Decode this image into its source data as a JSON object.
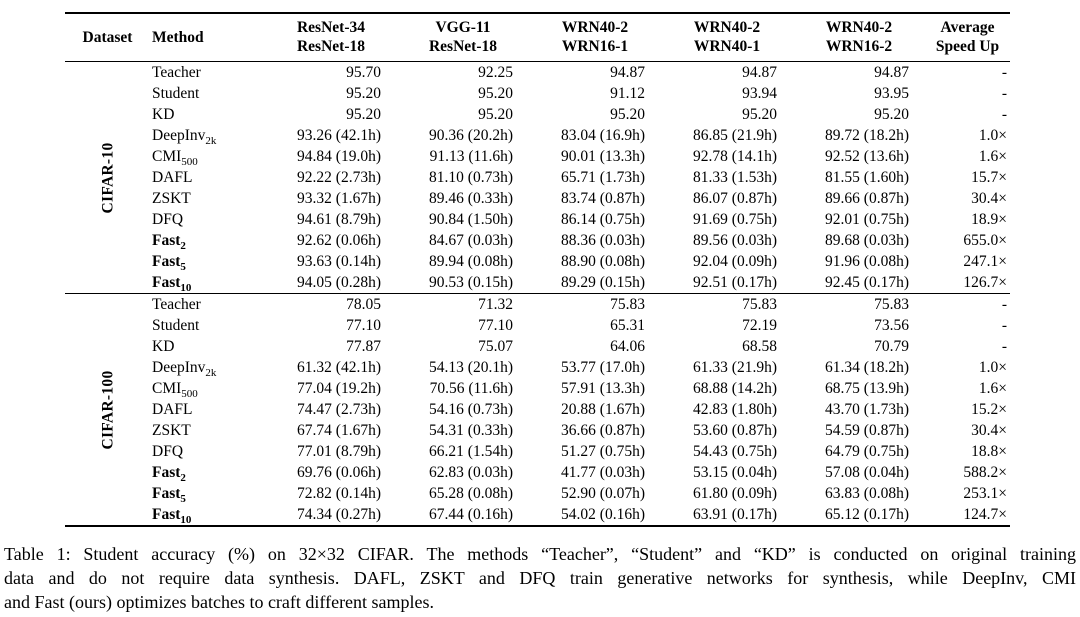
{
  "table": {
    "header": {
      "dataset": "Dataset",
      "method": "Method",
      "model_pairs": [
        {
          "top": "ResNet-34",
          "bottom": "ResNet-18"
        },
        {
          "top": "VGG-11",
          "bottom": "ResNet-18"
        },
        {
          "top": "WRN40-2",
          "bottom": "WRN16-1"
        },
        {
          "top": "WRN40-2",
          "bottom": "WRN40-1"
        },
        {
          "top": "WRN40-2",
          "bottom": "WRN16-2"
        },
        {
          "top": "Average",
          "bottom": "Speed Up"
        }
      ]
    },
    "sections": [
      {
        "dataset": "CIFAR-10",
        "rows": [
          {
            "method": "Teacher",
            "sub": "",
            "bold": false,
            "values": [
              "95.70",
              "92.25",
              "94.87",
              "94.87",
              "94.87",
              "-"
            ]
          },
          {
            "method": "Student",
            "sub": "",
            "bold": false,
            "values": [
              "95.20",
              "95.20",
              "91.12",
              "93.94",
              "93.95",
              "-"
            ]
          },
          {
            "method": "KD",
            "sub": "",
            "bold": false,
            "values": [
              "95.20",
              "95.20",
              "95.20",
              "95.20",
              "95.20",
              "-"
            ]
          },
          {
            "method": "DeepInv",
            "sub": "2k",
            "bold": false,
            "values": [
              "93.26 (42.1h)",
              "90.36 (20.2h)",
              "83.04 (16.9h)",
              "86.85 (21.9h)",
              "89.72 (18.2h)",
              "1.0×"
            ]
          },
          {
            "method": "CMI",
            "sub": "500",
            "bold": false,
            "values": [
              "94.84 (19.0h)",
              "91.13 (11.6h)",
              "90.01 (13.3h)",
              "92.78 (14.1h)",
              "92.52 (13.6h)",
              "1.6×"
            ]
          },
          {
            "method": "DAFL",
            "sub": "",
            "bold": false,
            "values": [
              "92.22 (2.73h)",
              "81.10 (0.73h)",
              "65.71 (1.73h)",
              "81.33 (1.53h)",
              "81.55 (1.60h)",
              "15.7×"
            ]
          },
          {
            "method": "ZSKT",
            "sub": "",
            "bold": false,
            "values": [
              "93.32 (1.67h)",
              "89.46 (0.33h)",
              "83.74 (0.87h)",
              "86.07 (0.87h)",
              "89.66 (0.87h)",
              "30.4×"
            ]
          },
          {
            "method": "DFQ",
            "sub": "",
            "bold": false,
            "values": [
              "94.61 (8.79h)",
              "90.84 (1.50h)",
              "86.14 (0.75h)",
              "91.69 (0.75h)",
              "92.01 (0.75h)",
              "18.9×"
            ]
          },
          {
            "method": "Fast",
            "sub": "2",
            "bold": true,
            "values": [
              "92.62 (0.06h)",
              "84.67 (0.03h)",
              "88.36 (0.03h)",
              "89.56 (0.03h)",
              "89.68 (0.03h)",
              "655.0×"
            ]
          },
          {
            "method": "Fast",
            "sub": "5",
            "bold": true,
            "values": [
              "93.63 (0.14h)",
              "89.94 (0.08h)",
              "88.90 (0.08h)",
              "92.04 (0.09h)",
              "91.96 (0.08h)",
              "247.1×"
            ]
          },
          {
            "method": "Fast",
            "sub": "10",
            "bold": true,
            "values": [
              "94.05 (0.28h)",
              "90.53 (0.15h)",
              "89.29 (0.15h)",
              "92.51 (0.17h)",
              "92.45 (0.17h)",
              "126.7×"
            ]
          }
        ]
      },
      {
        "dataset": "CIFAR-100",
        "rows": [
          {
            "method": "Teacher",
            "sub": "",
            "bold": false,
            "values": [
              "78.05",
              "71.32",
              "75.83",
              "75.83",
              "75.83",
              "-"
            ]
          },
          {
            "method": "Student",
            "sub": "",
            "bold": false,
            "values": [
              "77.10",
              "77.10",
              "65.31",
              "72.19",
              "73.56",
              "-"
            ]
          },
          {
            "method": "KD",
            "sub": "",
            "bold": false,
            "values": [
              "77.87",
              "75.07",
              "64.06",
              "68.58",
              "70.79",
              "-"
            ]
          },
          {
            "method": "DeepInv",
            "sub": "2k",
            "bold": false,
            "values": [
              "61.32 (42.1h)",
              "54.13 (20.1h)",
              "53.77 (17.0h)",
              "61.33 (21.9h)",
              "61.34 (18.2h)",
              "1.0×"
            ]
          },
          {
            "method": "CMI",
            "sub": "500",
            "bold": false,
            "values": [
              "77.04 (19.2h)",
              "70.56 (11.6h)",
              "57.91 (13.3h)",
              "68.88 (14.2h)",
              "68.75 (13.9h)",
              "1.6×"
            ]
          },
          {
            "method": "DAFL",
            "sub": "",
            "bold": false,
            "values": [
              "74.47 (2.73h)",
              "54.16 (0.73h)",
              "20.88 (1.67h)",
              "42.83 (1.80h)",
              "43.70 (1.73h)",
              "15.2×"
            ]
          },
          {
            "method": "ZSKT",
            "sub": "",
            "bold": false,
            "values": [
              "67.74 (1.67h)",
              "54.31 (0.33h)",
              "36.66 (0.87h)",
              "53.60 (0.87h)",
              "54.59 (0.87h)",
              "30.4×"
            ]
          },
          {
            "method": "DFQ",
            "sub": "",
            "bold": false,
            "values": [
              "77.01 (8.79h)",
              "66.21 (1.54h)",
              "51.27 (0.75h)",
              "54.43 (0.75h)",
              "64.79 (0.75h)",
              "18.8×"
            ]
          },
          {
            "method": "Fast",
            "sub": "2",
            "bold": true,
            "values": [
              "69.76 (0.06h)",
              "62.83 (0.03h)",
              "41.77 (0.03h)",
              "53.15 (0.04h)",
              "57.08 (0.04h)",
              "588.2×"
            ]
          },
          {
            "method": "Fast",
            "sub": "5",
            "bold": true,
            "values": [
              "72.82 (0.14h)",
              "65.28 (0.08h)",
              "52.90 (0.07h)",
              "61.80 (0.09h)",
              "63.83 (0.08h)",
              "253.1×"
            ]
          },
          {
            "method": "Fast",
            "sub": "10",
            "bold": true,
            "values": [
              "74.34 (0.27h)",
              "67.44 (0.16h)",
              "54.02 (0.16h)",
              "63.91 (0.17h)",
              "65.12 (0.17h)",
              "124.7×"
            ]
          }
        ]
      }
    ]
  },
  "caption": {
    "lines": [
      "Table 1: Student accuracy (%) on 32×32 CIFAR. The methods “Teacher”, “Student” and “KD” is conducted on original training",
      "data and do not require data synthesis. DAFL, ZSKT and DFQ train generative networks for synthesis, while DeepInv, CMI",
      "and Fast (ours) optimizes batches to craft different samples."
    ]
  }
}
